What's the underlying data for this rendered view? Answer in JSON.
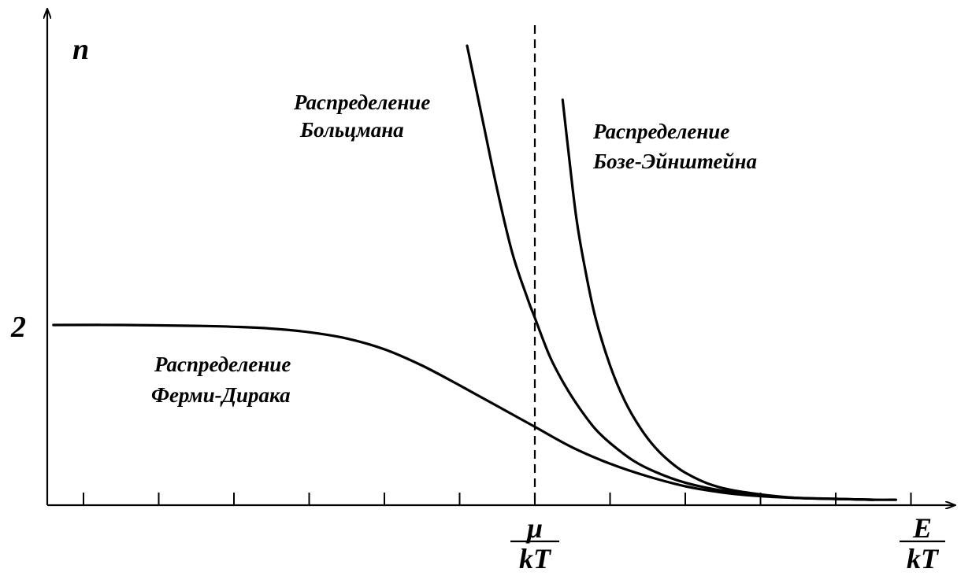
{
  "chart_data": {
    "type": "line",
    "title": "",
    "ylabel": "n",
    "ytick_label": "2",
    "mu_label": {
      "num": "μ",
      "den": "kT"
    },
    "x_label": {
      "num": "E",
      "den": "kT"
    },
    "xlim": [
      -6.5,
      5.3
    ],
    "ylim": [
      0,
      5.5
    ],
    "mu_x": 0,
    "grid": false,
    "ticks_x": [
      -6,
      -5,
      -4,
      -3,
      -2,
      -1,
      0,
      1,
      2,
      3,
      4,
      5
    ],
    "series": [
      {
        "key": "fermi",
        "name": "Распределение Ферми-Дирака",
        "label_lines": [
          "Распределение",
          "Ферми-Дирака"
        ],
        "x": [
          -6.4,
          -5.5,
          -4.5,
          -4.0,
          -3.5,
          -3.0,
          -2.5,
          -2.0,
          -1.5,
          -1.0,
          -0.5,
          0.0,
          0.5,
          1.0,
          1.5,
          2.0,
          2.5,
          3.0,
          3.5,
          4.0,
          4.5,
          4.8
        ],
        "y": [
          2.0,
          2.0,
          1.99,
          1.98,
          1.96,
          1.92,
          1.85,
          1.73,
          1.55,
          1.33,
          1.1,
          0.87,
          0.64,
          0.46,
          0.32,
          0.21,
          0.14,
          0.1,
          0.08,
          0.07,
          0.06,
          0.06
        ]
      },
      {
        "key": "boltzmann",
        "name": "Распределение Больцмана",
        "label_lines": [
          "Распределение",
          "Больцмана"
        ],
        "x": [
          -0.9,
          -0.7,
          -0.5,
          -0.3,
          -0.1,
          0.0,
          0.2,
          0.4,
          0.6,
          0.8,
          1.0,
          1.3,
          1.6,
          2.0,
          2.5,
          3.0,
          3.5,
          4.0,
          4.5
        ],
        "y": [
          5.1,
          4.3,
          3.5,
          2.8,
          2.3,
          2.08,
          1.65,
          1.33,
          1.07,
          0.85,
          0.69,
          0.5,
          0.37,
          0.25,
          0.16,
          0.11,
          0.08,
          0.07,
          0.06
        ]
      },
      {
        "key": "bose",
        "name": "Распределение Бозе-Эйнштейна",
        "label_lines": [
          "Распределение",
          "Бозе-Эйнштейна"
        ],
        "x": [
          0.37,
          0.45,
          0.55,
          0.65,
          0.8,
          1.0,
          1.2,
          1.4,
          1.6,
          1.8,
          2.0,
          2.3,
          2.6,
          3.0,
          3.5,
          4.0,
          4.5
        ],
        "y": [
          4.5,
          3.9,
          3.2,
          2.7,
          2.1,
          1.55,
          1.15,
          0.86,
          0.64,
          0.48,
          0.36,
          0.24,
          0.17,
          0.12,
          0.08,
          0.07,
          0.06
        ]
      }
    ]
  }
}
